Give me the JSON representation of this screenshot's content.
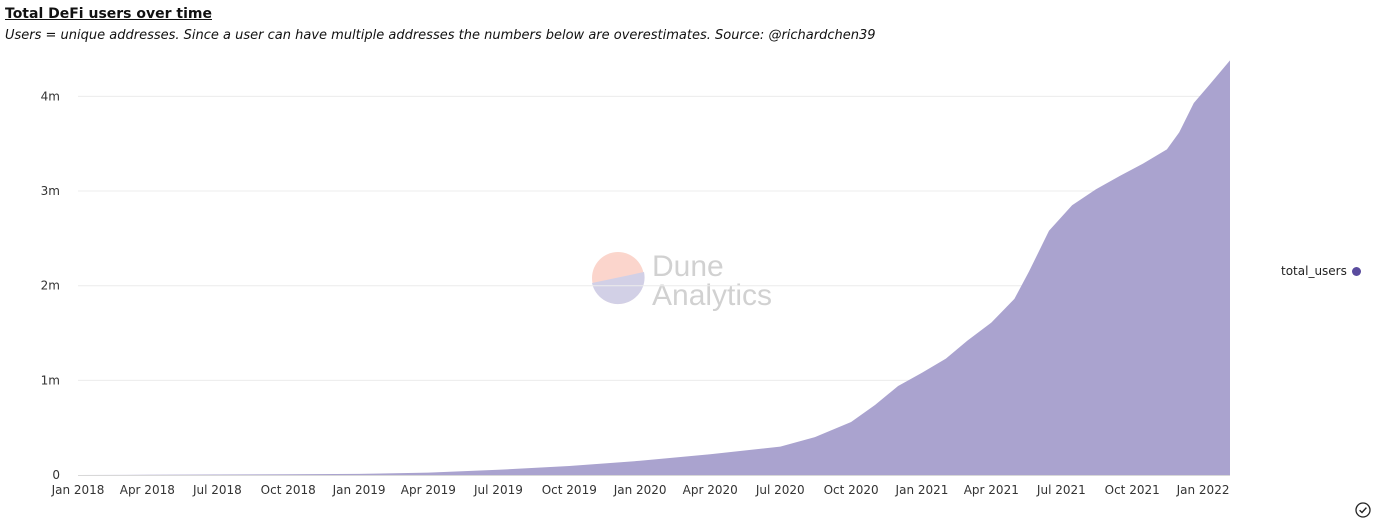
{
  "header": {
    "title": "Total DeFi users over time",
    "subtitle": "Users = unique addresses. Since a user can have multiple addresses the numbers below are overestimates. Source: @richardchen39"
  },
  "watermark": {
    "line1": "Dune",
    "line2": "Analytics"
  },
  "legend": {
    "label": "total_users",
    "color": "#5a4c9e"
  },
  "chart_data": {
    "type": "area",
    "title": "Total DeFi users over time",
    "xlabel": "",
    "ylabel": "",
    "x_ticks": [
      "Jan 2018",
      "Apr 2018",
      "Jul 2018",
      "Oct 2018",
      "Jan 2019",
      "Apr 2019",
      "Jul 2019",
      "Oct 2019",
      "Jan 2020",
      "Apr 2020",
      "Jul 2020",
      "Oct 2020",
      "Jan 2021",
      "Apr 2021",
      "Jul 2021",
      "Oct 2021",
      "Jan 2022"
    ],
    "y_ticks": [
      "0",
      "1m",
      "2m",
      "3m",
      "4m"
    ],
    "ylim": [
      0,
      4300000
    ],
    "xlim": [
      "2018-01-01",
      "2022-02-05"
    ],
    "grid": true,
    "legend_position": "right",
    "fill_color": "#aaa3cf",
    "series": [
      {
        "name": "total_users",
        "x": [
          "2018-01-01",
          "2018-04-01",
          "2018-07-01",
          "2018-10-01",
          "2019-01-01",
          "2019-04-01",
          "2019-07-01",
          "2019-10-01",
          "2020-01-01",
          "2020-04-01",
          "2020-07-01",
          "2020-08-15",
          "2020-10-01",
          "2020-11-01",
          "2020-12-01",
          "2021-01-01",
          "2021-02-01",
          "2021-03-01",
          "2021-04-01",
          "2021-05-01",
          "2021-05-20",
          "2021-06-15",
          "2021-07-15",
          "2021-08-15",
          "2021-09-15",
          "2021-10-15",
          "2021-11-15",
          "2021-12-01",
          "2021-12-20",
          "2022-01-10",
          "2022-02-05"
        ],
        "values": [
          0,
          2000,
          5000,
          8000,
          12000,
          25000,
          55000,
          95000,
          150000,
          220000,
          300000,
          400000,
          560000,
          740000,
          940000,
          1080000,
          1230000,
          1420000,
          1610000,
          1860000,
          2150000,
          2580000,
          2850000,
          3020000,
          3160000,
          3290000,
          3440000,
          3620000,
          3930000,
          4130000,
          4380000
        ]
      }
    ]
  }
}
